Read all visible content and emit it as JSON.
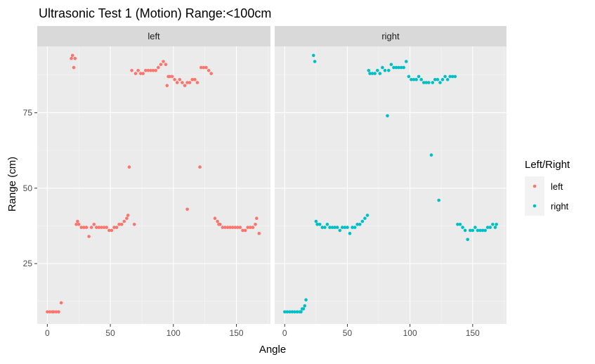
{
  "chart_data": {
    "type": "scatter",
    "title": "Ultrasonic Test 1 (Motion) Range:<100cm",
    "xlabel": "Angle",
    "ylabel": "Range (cm)",
    "xlim": [
      -8,
      177
    ],
    "ylim": [
      5,
      97
    ],
    "x_ticks": [
      0,
      50,
      100,
      150
    ],
    "x_tick_labels": [
      "0",
      "50",
      "100",
      "150"
    ],
    "y_ticks": [
      25,
      50,
      75
    ],
    "y_tick_labels": [
      "25",
      "50",
      "75"
    ],
    "grid": true,
    "legend_position": "right",
    "legend": {
      "title": "Left/Right",
      "items": [
        {
          "label": "left",
          "color": "#F8766D"
        },
        {
          "label": "right",
          "color": "#00BFC4"
        }
      ]
    },
    "facets": [
      {
        "label": "left",
        "color": "#F8766D",
        "points": [
          [
            0,
            9
          ],
          [
            2,
            9
          ],
          [
            4,
            9
          ],
          [
            5,
            9
          ],
          [
            7,
            9
          ],
          [
            9,
            9
          ],
          [
            11,
            12
          ],
          [
            19,
            93
          ],
          [
            20,
            94
          ],
          [
            21,
            90
          ],
          [
            22,
            93
          ],
          [
            23,
            38
          ],
          [
            24,
            39
          ],
          [
            25,
            38
          ],
          [
            27,
            37
          ],
          [
            29,
            37
          ],
          [
            31,
            37
          ],
          [
            33,
            34
          ],
          [
            35,
            37
          ],
          [
            37,
            38
          ],
          [
            39,
            37
          ],
          [
            41,
            37
          ],
          [
            43,
            37
          ],
          [
            45,
            37
          ],
          [
            47,
            37
          ],
          [
            49,
            36
          ],
          [
            51,
            36
          ],
          [
            53,
            37
          ],
          [
            55,
            37
          ],
          [
            57,
            38
          ],
          [
            59,
            38
          ],
          [
            61,
            39
          ],
          [
            63,
            40
          ],
          [
            64,
            41
          ],
          [
            65,
            57
          ],
          [
            67,
            89
          ],
          [
            69,
            38
          ],
          [
            70,
            88
          ],
          [
            72,
            89
          ],
          [
            74,
            88
          ],
          [
            76,
            88
          ],
          [
            78,
            89
          ],
          [
            80,
            89
          ],
          [
            82,
            89
          ],
          [
            84,
            89
          ],
          [
            86,
            89
          ],
          [
            88,
            90
          ],
          [
            90,
            91
          ],
          [
            92,
            92
          ],
          [
            94,
            91
          ],
          [
            95,
            84
          ],
          [
            96,
            87
          ],
          [
            97,
            87
          ],
          [
            99,
            87
          ],
          [
            101,
            86
          ],
          [
            103,
            85
          ],
          [
            105,
            86
          ],
          [
            107,
            85
          ],
          [
            109,
            84
          ],
          [
            111,
            85
          ],
          [
            111,
            43
          ],
          [
            113,
            85
          ],
          [
            115,
            86
          ],
          [
            117,
            86
          ],
          [
            119,
            85
          ],
          [
            121,
            57
          ],
          [
            122,
            90
          ],
          [
            124,
            90
          ],
          [
            126,
            90
          ],
          [
            128,
            89
          ],
          [
            130,
            88
          ],
          [
            133,
            40
          ],
          [
            135,
            39
          ],
          [
            136,
            38
          ],
          [
            137,
            38
          ],
          [
            139,
            37
          ],
          [
            141,
            37
          ],
          [
            143,
            37
          ],
          [
            145,
            37
          ],
          [
            147,
            37
          ],
          [
            149,
            37
          ],
          [
            151,
            37
          ],
          [
            153,
            37
          ],
          [
            155,
            36
          ],
          [
            157,
            36
          ],
          [
            159,
            37
          ],
          [
            161,
            37
          ],
          [
            163,
            37
          ],
          [
            165,
            38
          ],
          [
            166,
            40
          ],
          [
            168,
            35
          ]
        ]
      },
      {
        "label": "right",
        "color": "#00BFC4",
        "points": [
          [
            0,
            9
          ],
          [
            2,
            9
          ],
          [
            4,
            9
          ],
          [
            6,
            9
          ],
          [
            8,
            9
          ],
          [
            10,
            9
          ],
          [
            12,
            9
          ],
          [
            13,
            9
          ],
          [
            14,
            10
          ],
          [
            15,
            10
          ],
          [
            16,
            11
          ],
          [
            17,
            13
          ],
          [
            23,
            94
          ],
          [
            24,
            92
          ],
          [
            25,
            39
          ],
          [
            26,
            38
          ],
          [
            28,
            38
          ],
          [
            30,
            37
          ],
          [
            32,
            37
          ],
          [
            34,
            38
          ],
          [
            36,
            37
          ],
          [
            38,
            37
          ],
          [
            40,
            37
          ],
          [
            42,
            37
          ],
          [
            44,
            36
          ],
          [
            46,
            37
          ],
          [
            48,
            37
          ],
          [
            50,
            37
          ],
          [
            52,
            35
          ],
          [
            54,
            37
          ],
          [
            56,
            37
          ],
          [
            58,
            38
          ],
          [
            60,
            38
          ],
          [
            62,
            39
          ],
          [
            64,
            40
          ],
          [
            66,
            41
          ],
          [
            67,
            89
          ],
          [
            68,
            88
          ],
          [
            70,
            88
          ],
          [
            72,
            88
          ],
          [
            74,
            89
          ],
          [
            76,
            88
          ],
          [
            78,
            90
          ],
          [
            80,
            89
          ],
          [
            82,
            74
          ],
          [
            83,
            89
          ],
          [
            85,
            91
          ],
          [
            87,
            90
          ],
          [
            89,
            90
          ],
          [
            91,
            90
          ],
          [
            93,
            90
          ],
          [
            95,
            90
          ],
          [
            97,
            92
          ],
          [
            99,
            87
          ],
          [
            101,
            86
          ],
          [
            103,
            86
          ],
          [
            105,
            86
          ],
          [
            107,
            87
          ],
          [
            109,
            86
          ],
          [
            111,
            85
          ],
          [
            113,
            85
          ],
          [
            115,
            85
          ],
          [
            117,
            61
          ],
          [
            118,
            85
          ],
          [
            120,
            86
          ],
          [
            122,
            86
          ],
          [
            123,
            46
          ],
          [
            124,
            85
          ],
          [
            126,
            86
          ],
          [
            128,
            87
          ],
          [
            130,
            86
          ],
          [
            132,
            87
          ],
          [
            134,
            87
          ],
          [
            136,
            87
          ],
          [
            138,
            38
          ],
          [
            140,
            38
          ],
          [
            142,
            37
          ],
          [
            144,
            36
          ],
          [
            146,
            33
          ],
          [
            148,
            36
          ],
          [
            150,
            36
          ],
          [
            152,
            37
          ],
          [
            154,
            36
          ],
          [
            156,
            36
          ],
          [
            158,
            36
          ],
          [
            160,
            36
          ],
          [
            162,
            37
          ],
          [
            164,
            37
          ],
          [
            166,
            38
          ],
          [
            168,
            37
          ],
          [
            169,
            38
          ]
        ]
      }
    ]
  }
}
